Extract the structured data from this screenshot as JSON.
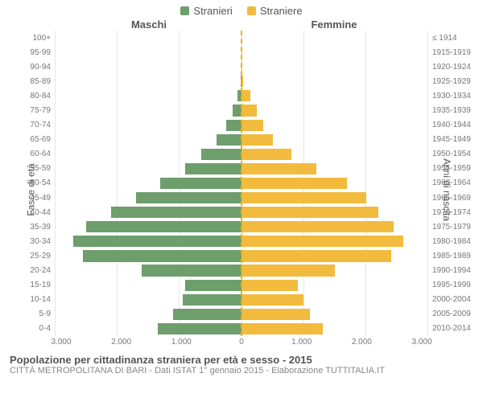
{
  "legend": {
    "male": {
      "label": "Stranieri",
      "color": "#6d9e6c"
    },
    "female": {
      "label": "Straniere",
      "color": "#f2bb3d"
    }
  },
  "header": {
    "left": "Maschi",
    "right": "Femmine"
  },
  "yaxis": {
    "left_title": "Fasce di età",
    "right_title": "Anni di nascita"
  },
  "chart": {
    "type": "pyramid-bar",
    "max_value": 3000,
    "background_color": "#ffffff",
    "grid_color": "#e6e6e6",
    "centerline_color": "#f0b000",
    "male_bar_color": "#6d9e6c",
    "female_bar_color": "#f2bb3d",
    "xticks": [
      {
        "pos": 0,
        "label": "3.000"
      },
      {
        "pos": 1000,
        "label": "2.000"
      },
      {
        "pos": 2000,
        "label": "1.000"
      },
      {
        "pos": 3000,
        "label": "0"
      },
      {
        "pos": 4000,
        "label": "1.000"
      },
      {
        "pos": 5000,
        "label": "2.000"
      },
      {
        "pos": 6000,
        "label": "3.000"
      }
    ],
    "xaxis_span": 6000,
    "rows": [
      {
        "age": "100+",
        "birth": "≤ 1914",
        "m": 0,
        "f": 0
      },
      {
        "age": "95-99",
        "birth": "1915-1919",
        "m": 0,
        "f": 2
      },
      {
        "age": "90-94",
        "birth": "1920-1924",
        "m": 2,
        "f": 10
      },
      {
        "age": "85-89",
        "birth": "1925-1929",
        "m": 10,
        "f": 30
      },
      {
        "age": "80-84",
        "birth": "1930-1934",
        "m": 60,
        "f": 140
      },
      {
        "age": "75-79",
        "birth": "1935-1939",
        "m": 140,
        "f": 250
      },
      {
        "age": "70-74",
        "birth": "1940-1944",
        "m": 250,
        "f": 350
      },
      {
        "age": "65-69",
        "birth": "1945-1949",
        "m": 400,
        "f": 500
      },
      {
        "age": "60-64",
        "birth": "1950-1954",
        "m": 650,
        "f": 800
      },
      {
        "age": "55-59",
        "birth": "1955-1959",
        "m": 900,
        "f": 1200
      },
      {
        "age": "50-54",
        "birth": "1960-1964",
        "m": 1300,
        "f": 1700
      },
      {
        "age": "45-49",
        "birth": "1965-1969",
        "m": 1700,
        "f": 2000
      },
      {
        "age": "40-44",
        "birth": "1970-1974",
        "m": 2100,
        "f": 2200
      },
      {
        "age": "35-39",
        "birth": "1975-1979",
        "m": 2500,
        "f": 2450
      },
      {
        "age": "30-34",
        "birth": "1980-1984",
        "m": 2700,
        "f": 2600
      },
      {
        "age": "25-29",
        "birth": "1985-1989",
        "m": 2550,
        "f": 2400
      },
      {
        "age": "20-24",
        "birth": "1990-1994",
        "m": 1600,
        "f": 1500
      },
      {
        "age": "15-19",
        "birth": "1995-1999",
        "m": 900,
        "f": 900
      },
      {
        "age": "10-14",
        "birth": "2000-2004",
        "m": 950,
        "f": 1000
      },
      {
        "age": "5-9",
        "birth": "2005-2009",
        "m": 1100,
        "f": 1100
      },
      {
        "age": "0-4",
        "birth": "2010-2014",
        "m": 1350,
        "f": 1300
      }
    ]
  },
  "footer": {
    "title": "Popolazione per cittadinanza straniera per età e sesso - 2015",
    "subtitle": "CITTÀ METROPOLITANA DI BARI - Dati ISTAT 1° gennaio 2015 - Elaborazione TUTTITALIA.IT"
  }
}
